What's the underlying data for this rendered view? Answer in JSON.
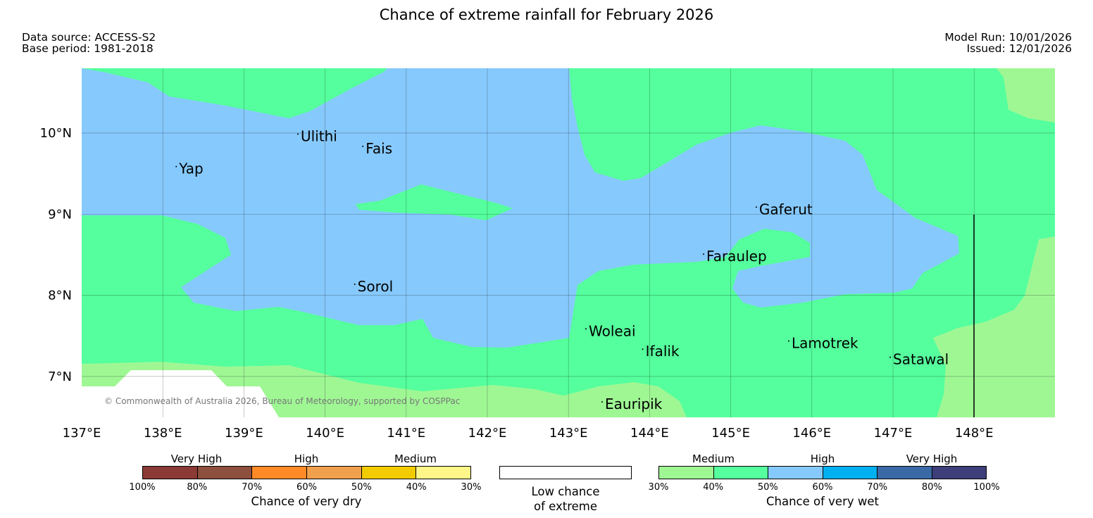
{
  "title": "Chance of extreme rainfall for February 2026",
  "meta": {
    "data_source": "Data source: ACCESS-S2",
    "base_period": "Base period: 1981-2018",
    "model_run": "Model Run: 10/01/2026",
    "issued": "Issued: 12/01/2026"
  },
  "map": {
    "lon_range": [
      137,
      149
    ],
    "lat_range": [
      6.5,
      10.8
    ],
    "lon_ticks": [
      "137°E",
      "138°E",
      "139°E",
      "140°E",
      "141°E",
      "142°E",
      "143°E",
      "144°E",
      "145°E",
      "146°E",
      "147°E",
      "148°E"
    ],
    "lat_ticks": [
      "10°N",
      "9°N",
      "8°N",
      "7°N"
    ],
    "copyright": "© Commonwealth of Australia 2026, Bureau of Meteorology, supported by COSPPac",
    "places": [
      {
        "name": "Yap",
        "lon": 138.2,
        "lat": 9.5
      },
      {
        "name": "Ulithi",
        "lon": 139.7,
        "lat": 9.9
      },
      {
        "name": "Fais",
        "lon": 140.5,
        "lat": 9.75
      },
      {
        "name": "Gaferut",
        "lon": 145.35,
        "lat": 9.0
      },
      {
        "name": "Faraulep",
        "lon": 144.7,
        "lat": 8.42
      },
      {
        "name": "Sorol",
        "lon": 140.4,
        "lat": 8.05
      },
      {
        "name": "Woleai",
        "lon": 143.25,
        "lat": 7.5
      },
      {
        "name": "Ifalik",
        "lon": 143.95,
        "lat": 7.25
      },
      {
        "name": "Lamotrek",
        "lon": 145.75,
        "lat": 7.35
      },
      {
        "name": "Satawal",
        "lon": 147.0,
        "lat": 7.15
      },
      {
        "name": "Eauripik",
        "lon": 143.45,
        "lat": 6.6
      }
    ],
    "colors": {
      "wet_medium_30": "#9ff794",
      "wet_medium_40": "#55ff9d",
      "wet_high_50": "#86c9fc",
      "low_chance": "#ffffff"
    }
  },
  "legend": {
    "dry": {
      "categories": [
        "Very High",
        "High",
        "Medium"
      ],
      "ticks": [
        "100%",
        "80%",
        "70%",
        "60%",
        "50%",
        "40%",
        "30%"
      ],
      "colors": [
        "#8b3a35",
        "#8d4f3e",
        "#ff8a27",
        "#f0a04c",
        "#f2cc00",
        "#fff68a"
      ],
      "caption": "Chance of very dry"
    },
    "low": {
      "caption_line1": "Low chance",
      "caption_line2": "of extreme"
    },
    "wet": {
      "categories": [
        "Medium",
        "High",
        "Very High"
      ],
      "ticks": [
        "30%",
        "40%",
        "50%",
        "60%",
        "70%",
        "80%",
        "100%"
      ],
      "colors": [
        "#9ff794",
        "#55ff9d",
        "#86c9fc",
        "#00b0f0",
        "#3a6aa5",
        "#3e3e7a"
      ],
      "caption": "Chance of very wet"
    }
  }
}
